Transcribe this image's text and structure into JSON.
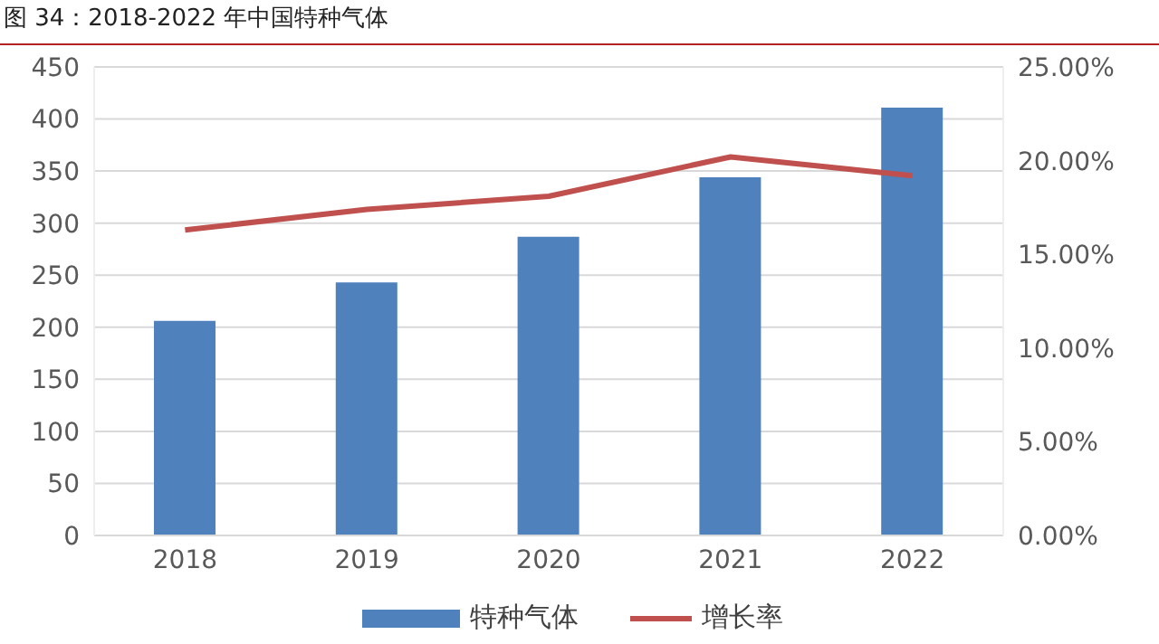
{
  "chart_data": {
    "type": "bar",
    "title": "图 34：2018-2022 年中国特种气体",
    "categories": [
      "2018",
      "2019",
      "2020",
      "2021",
      "2022"
    ],
    "series": [
      {
        "name": "特种气体",
        "color": "#4f81bd",
        "values": [
          206,
          243,
          287,
          344,
          411
        ]
      },
      {
        "name": "增长率",
        "type": "line",
        "axis": "y2",
        "color": "#c0504d",
        "values": [
          16.3,
          17.4,
          18.1,
          20.2,
          19.2
        ]
      }
    ],
    "ylim": [
      0,
      450
    ],
    "yticks": [
      0,
      50,
      100,
      150,
      200,
      250,
      300,
      350,
      400,
      450
    ],
    "y2lim": [
      0,
      25
    ],
    "y2ticks": [
      {
        "value": 0,
        "label": "0.00%"
      },
      {
        "value": 5,
        "label": "5.00%"
      },
      {
        "value": 10,
        "label": "10.00%"
      },
      {
        "value": 15,
        "label": "15.00%"
      },
      {
        "value": 20,
        "label": "20.00%"
      },
      {
        "value": 25,
        "label": "25.00%"
      }
    ],
    "grid": "y",
    "legend": "bottom",
    "marker": "none",
    "line_style": "solid"
  }
}
